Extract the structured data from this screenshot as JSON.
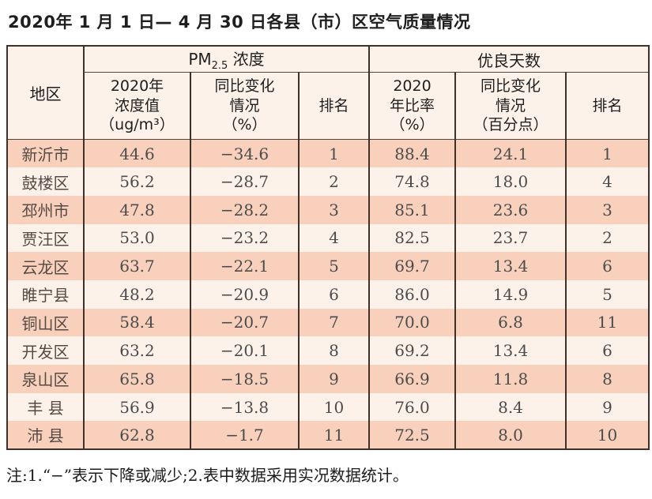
{
  "title": "2020年 1 月 1 日— 4 月 30 日各县（市）区空气质量情况",
  "table": {
    "region_header": "地区",
    "pm_group": {
      "prefix": "PM",
      "sub": "2.5",
      "suffix": " 浓度"
    },
    "good_group": "优良天数",
    "sub_headers": [
      "2020年\n浓度值\n（ug/m³）",
      "同比变化\n情况\n（%）",
      "排名",
      "2020\n年比率\n（%）",
      "同比变化\n情况\n（百分点）",
      "排名"
    ],
    "rows": [
      {
        "region": "新沂市",
        "pm_value": "44.6",
        "pm_change": "−34.6",
        "pm_rank": "1",
        "good_rate": "88.4",
        "good_change": "24.1",
        "good_rank": "1"
      },
      {
        "region": "鼓楼区",
        "pm_value": "56.2",
        "pm_change": "−28.7",
        "pm_rank": "2",
        "good_rate": "74.8",
        "good_change": "18.0",
        "good_rank": "4"
      },
      {
        "region": "邳州市",
        "pm_value": "47.8",
        "pm_change": "−28.2",
        "pm_rank": "3",
        "good_rate": "85.1",
        "good_change": "23.6",
        "good_rank": "3"
      },
      {
        "region": "贾汪区",
        "pm_value": "53.0",
        "pm_change": "−23.2",
        "pm_rank": "4",
        "good_rate": "82.5",
        "good_change": "23.7",
        "good_rank": "2"
      },
      {
        "region": "云龙区",
        "pm_value": "63.7",
        "pm_change": "−22.1",
        "pm_rank": "5",
        "good_rate": "69.7",
        "good_change": "13.4",
        "good_rank": "6"
      },
      {
        "region": "睢宁县",
        "pm_value": "48.2",
        "pm_change": "−20.9",
        "pm_rank": "6",
        "good_rate": "86.0",
        "good_change": "14.9",
        "good_rank": "5"
      },
      {
        "region": "铜山区",
        "pm_value": "58.4",
        "pm_change": "−20.7",
        "pm_rank": "7",
        "good_rate": "70.0",
        "good_change": "6.8",
        "good_rank": "11"
      },
      {
        "region": "开发区",
        "pm_value": "63.2",
        "pm_change": "−20.1",
        "pm_rank": "8",
        "good_rate": "69.2",
        "good_change": "13.4",
        "good_rank": "6"
      },
      {
        "region": "泉山区",
        "pm_value": "65.8",
        "pm_change": "−18.5",
        "pm_rank": "9",
        "good_rate": "66.9",
        "good_change": "11.8",
        "good_rank": "8"
      },
      {
        "region": "丰 县",
        "pm_value": "56.9",
        "pm_change": "−13.8",
        "pm_rank": "10",
        "good_rate": "76.0",
        "good_change": "8.4",
        "good_rank": "9"
      },
      {
        "region": "沛 县",
        "pm_value": "62.8",
        "pm_change": "−1.7",
        "pm_rank": "11",
        "good_rate": "72.5",
        "good_change": "8.0",
        "good_rank": "10"
      }
    ]
  },
  "note": "注:1.“−”表示下降或减少;2.表中数据采用实况数据统计。",
  "colors": {
    "border_dark": "#40302a",
    "rule_dark": "#4e453f",
    "row_shaded": "#f8d0bc",
    "row_plain": "#fdf2ea",
    "header_bg": "#fdf2ea",
    "text_dark": "#1e1e1e",
    "text_body": "#4c4c4c",
    "text_region": "#564a44"
  }
}
